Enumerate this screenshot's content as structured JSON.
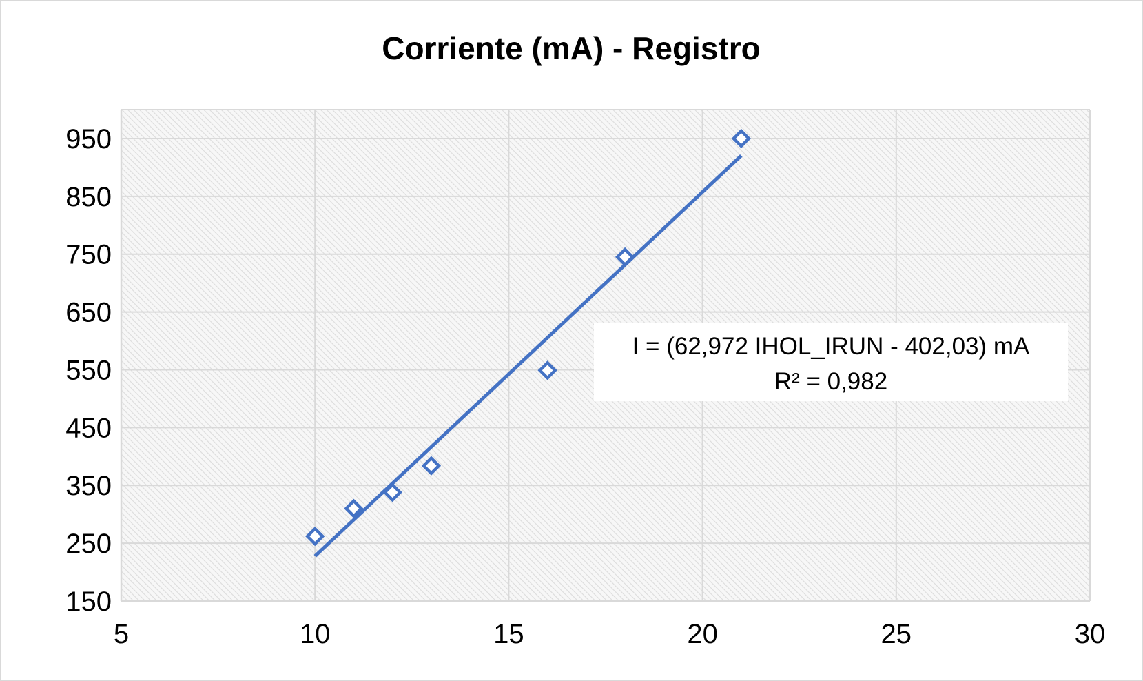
{
  "chart_data": {
    "type": "scatter",
    "title": "Corriente (mA) - Registro",
    "xlabel": "",
    "ylabel": "",
    "xlim": [
      5,
      30
    ],
    "ylim": [
      150,
      1000
    ],
    "x_ticks": [
      5,
      10,
      15,
      20,
      25,
      30
    ],
    "x_tick_labels": [
      "5",
      "10",
      "15",
      "20",
      "25",
      "30"
    ],
    "y_ticks": [
      150,
      250,
      350,
      450,
      550,
      650,
      750,
      850,
      950
    ],
    "y_tick_labels": [
      "150",
      "250",
      "350",
      "450",
      "550",
      "650",
      "750",
      "850",
      "950"
    ],
    "grid": true,
    "legend": "none",
    "series": [
      {
        "marker": "diamond-open",
        "color": "#4472c4",
        "points": [
          {
            "x": 10,
            "y": 262
          },
          {
            "x": 11,
            "y": 310
          },
          {
            "x": 12,
            "y": 338
          },
          {
            "x": 13,
            "y": 384
          },
          {
            "x": 16,
            "y": 549
          },
          {
            "x": 18,
            "y": 745
          },
          {
            "x": 21,
            "y": 950
          }
        ]
      }
    ],
    "trendline": {
      "type": "linear",
      "slope": 62.972,
      "intercept": -402.03,
      "x_range": [
        10,
        21
      ],
      "color": "#4472c4"
    },
    "annotation": {
      "line1": "I = (62,972 IHOL_IRUN - 402,03) mA",
      "line2": "R² = 0,982"
    }
  }
}
